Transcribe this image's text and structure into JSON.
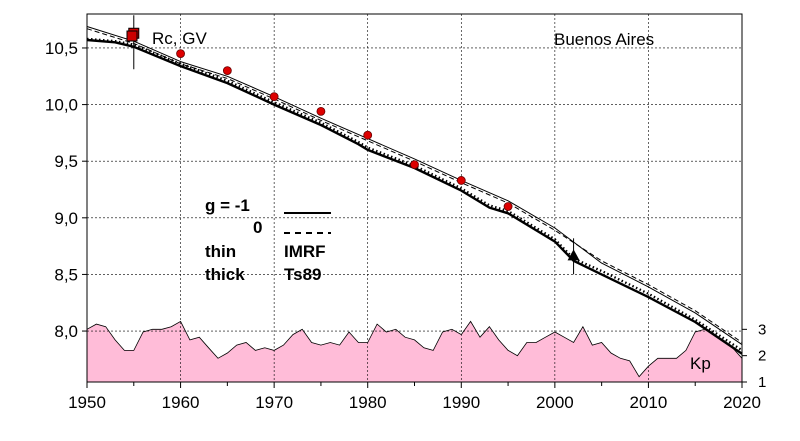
{
  "chart_data": {
    "type": "line",
    "title": "Buenos Aires",
    "xlim": [
      1950,
      2020
    ],
    "ylim": [
      7.55,
      10.8
    ],
    "x_ticks": [
      "1950",
      "1960",
      "1970",
      "1980",
      "1990",
      "2000",
      "2010",
      "2020"
    ],
    "y_ticks": [
      "8,0",
      "8,5",
      "9,0",
      "9,5",
      "10,0",
      "10,5"
    ],
    "grid": true,
    "series": [
      {
        "name": "g = -1 IMRF",
        "style": "solid-thin",
        "x": [
          1950,
          1955,
          1960,
          1965,
          1970,
          1975,
          1980,
          1985,
          1990,
          1995,
          2000,
          2005,
          2010,
          2015,
          2020
        ],
        "values": [
          10.69,
          10.56,
          10.38,
          10.25,
          10.07,
          9.88,
          9.7,
          9.52,
          9.33,
          9.15,
          8.91,
          8.6,
          8.39,
          8.16,
          7.88
        ]
      },
      {
        "name": "0 IMRF",
        "style": "dashed-thin",
        "x": [
          1950,
          1955,
          1960,
          1965,
          1970,
          1975,
          1980,
          1985,
          1990,
          1995,
          2000,
          2005,
          2010,
          2015,
          2020
        ],
        "values": [
          10.67,
          10.54,
          10.36,
          10.23,
          10.05,
          9.86,
          9.68,
          9.5,
          9.31,
          9.13,
          8.89,
          8.62,
          8.41,
          8.18,
          7.9
        ]
      },
      {
        "name": "g = -1 Ts89",
        "style": "solid-thick",
        "x": [
          1950,
          1953,
          1955,
          1960,
          1965,
          1970,
          1975,
          1979,
          1980,
          1985,
          1990,
          1993,
          1995,
          2000,
          2002,
          2005,
          2010,
          2015,
          2020
        ],
        "values": [
          10.57,
          10.55,
          10.51,
          10.34,
          10.19,
          10.0,
          9.82,
          9.65,
          9.6,
          9.44,
          9.24,
          9.09,
          9.04,
          8.79,
          8.62,
          8.5,
          8.3,
          8.08,
          7.8
        ]
      },
      {
        "name": "0 Ts89",
        "style": "dotted-thick",
        "x": [
          1950,
          1953,
          1955,
          1960,
          1965,
          1970,
          1975,
          1979,
          1980,
          1985,
          1990,
          1993,
          1995,
          2000,
          2002,
          2005,
          2010,
          2015,
          2020
        ],
        "values": [
          10.58,
          10.56,
          10.53,
          10.36,
          10.21,
          10.02,
          9.84,
          9.67,
          9.62,
          9.46,
          9.26,
          9.11,
          9.06,
          8.81,
          8.64,
          8.53,
          8.33,
          8.1,
          7.83
        ]
      },
      {
        "name": "Rc, GV",
        "style": "markers",
        "x": [
          1960,
          1965,
          1970,
          1975,
          1980,
          1985,
          1990,
          1995
        ],
        "values": [
          10.45,
          10.3,
          10.07,
          9.94,
          9.73,
          9.47,
          9.33,
          9.1
        ]
      }
    ],
    "special_markers": [
      {
        "shape": "square",
        "x": 1955,
        "y": 10.63
      },
      {
        "shape": "triangle",
        "x": 2002,
        "y": 8.66
      }
    ],
    "kp": {
      "label": "Kp",
      "ticks": [
        "1",
        "2",
        "3"
      ],
      "ylim": [
        1,
        4
      ],
      "color": "#ffbcd8",
      "x": [
        1950,
        1951,
        1952,
        1953,
        1954,
        1955,
        1956,
        1957,
        1958,
        1959,
        1960,
        1961,
        1962,
        1963,
        1964,
        1965,
        1966,
        1967,
        1968,
        1969,
        1970,
        1971,
        1972,
        1973,
        1974,
        1975,
        1976,
        1977,
        1978,
        1979,
        1980,
        1981,
        1982,
        1983,
        1984,
        1985,
        1986,
        1987,
        1988,
        1989,
        1990,
        1991,
        1992,
        1993,
        1994,
        1995,
        1996,
        1997,
        1998,
        1999,
        2000,
        2001,
        2002,
        2003,
        2004,
        2005,
        2006,
        2007,
        2008,
        2009,
        2010,
        2011,
        2012,
        2013,
        2014,
        2015,
        2016,
        2017,
        2018,
        2019,
        2020
      ],
      "values": [
        3.0,
        3.2,
        3.1,
        2.6,
        2.2,
        2.2,
        2.9,
        3.0,
        3.0,
        3.1,
        3.3,
        2.6,
        2.7,
        2.3,
        1.9,
        2.1,
        2.4,
        2.5,
        2.2,
        2.3,
        2.2,
        2.4,
        2.8,
        3.0,
        2.5,
        2.4,
        2.5,
        2.4,
        2.9,
        2.5,
        2.5,
        3.2,
        2.9,
        3.0,
        2.7,
        2.6,
        2.3,
        2.2,
        2.9,
        3.0,
        2.8,
        3.3,
        2.7,
        3.1,
        2.6,
        2.2,
        2.0,
        2.5,
        2.5,
        2.7,
        2.9,
        2.7,
        2.5,
        3.1,
        2.4,
        2.5,
        2.1,
        1.9,
        1.8,
        1.2,
        1.6,
        1.9,
        1.9,
        1.9,
        2.2,
        2.9,
        3.0,
        2.8,
        2.6,
        2.3,
        1.9
      ]
    }
  },
  "annotations": {
    "location": "Buenos Aires",
    "rc_label": "Rc, GV",
    "g_row1": "g  = -1",
    "g_row2": "0",
    "row_thin_left": "thin",
    "row_thin_right": "IMRF",
    "row_thick_left": "thick",
    "row_thick_right": "Ts89",
    "kp_label": "Kp"
  }
}
